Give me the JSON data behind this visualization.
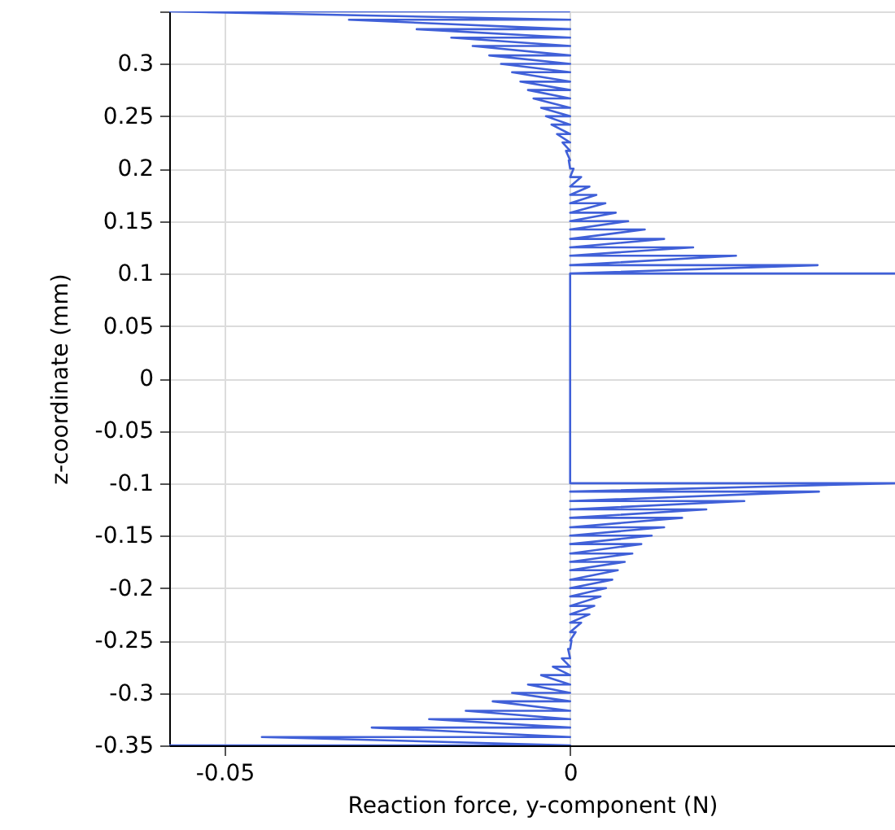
{
  "chart_data": {
    "type": "line",
    "xlabel": "Reaction force, y-component (N)",
    "ylabel": "z-coordinate (mm)",
    "xlim": [
      -0.058,
      0.047
    ],
    "xticks": [
      -0.05,
      0
    ],
    "ylim": [
      -0.35,
      0.35
    ],
    "yticks": [
      -0.35,
      -0.3,
      -0.25,
      -0.2,
      -0.15,
      -0.1,
      -0.05,
      0,
      0.05,
      0.1,
      0.15,
      0.2,
      0.25,
      0.3,
      {
        "value": 0.35,
        "label": null
      }
    ],
    "grid": true,
    "marker": "none",
    "line_style": "solid",
    "series": [
      {
        "color": "#4060d8",
        "x": [
          0,
          -0.058,
          0,
          -0.032,
          0,
          -0.0222,
          0,
          -0.0172,
          0,
          -0.0141,
          0,
          -0.0117,
          0,
          -0.01,
          0,
          -0.0084,
          0,
          -0.0072,
          0,
          -0.0061,
          0,
          -0.0053,
          0,
          -0.0042,
          0,
          -0.0035,
          0,
          -0.0027,
          0,
          -0.0019,
          0,
          -0.0011,
          0,
          -0.0006,
          0,
          -0.0002,
          0,
          0.0005,
          0,
          0.0016,
          0,
          0.0028,
          0,
          0.0038,
          0,
          0.0051,
          0,
          0.0066,
          0,
          0.0084,
          0,
          0.0108,
          0,
          0.0136,
          0,
          0.0178,
          0,
          0.024,
          0,
          0.0358,
          0,
          0.047,
          0,
          0,
          0.047,
          0,
          0.036,
          0,
          0.0252,
          0,
          0.0197,
          0,
          0.0162,
          0,
          0.0136,
          0,
          0.0118,
          0,
          0.0103,
          0,
          0.009,
          0,
          0.0079,
          0,
          0.0069,
          0,
          0.0061,
          0,
          0.0052,
          0,
          0.0044,
          0,
          0.0035,
          0,
          0.0028,
          0,
          0.0016,
          0,
          0.0008,
          0,
          0.0002,
          0,
          -0.0003,
          0,
          -0.0012,
          0,
          -0.0025,
          0,
          -0.0042,
          0,
          -0.0061,
          0,
          -0.0084,
          0,
          -0.0112,
          0,
          -0.0151,
          0,
          -0.0204,
          0,
          -0.0287,
          0,
          -0.0446,
          0,
          -0.058
        ],
        "values": [
          0.35,
          0.35,
          0.342,
          0.342,
          0.333,
          0.333,
          0.325,
          0.325,
          0.317,
          0.317,
          0.308,
          0.308,
          0.3,
          0.3,
          0.292,
          0.292,
          0.283,
          0.283,
          0.275,
          0.275,
          0.267,
          0.267,
          0.258,
          0.258,
          0.25,
          0.25,
          0.242,
          0.242,
          0.233,
          0.233,
          0.225,
          0.225,
          0.217,
          0.217,
          0.208,
          0.208,
          0.2,
          0.2,
          0.192,
          0.192,
          0.183,
          0.183,
          0.175,
          0.175,
          0.167,
          0.167,
          0.158,
          0.158,
          0.15,
          0.15,
          0.142,
          0.142,
          0.133,
          0.133,
          0.125,
          0.125,
          0.117,
          0.117,
          0.108,
          0.108,
          0.1,
          0.1,
          0.1,
          -0.1,
          -0.1,
          -0.108,
          -0.108,
          -0.117,
          -0.117,
          -0.125,
          -0.125,
          -0.133,
          -0.133,
          -0.142,
          -0.142,
          -0.15,
          -0.15,
          -0.158,
          -0.158,
          -0.167,
          -0.167,
          -0.175,
          -0.175,
          -0.183,
          -0.183,
          -0.192,
          -0.192,
          -0.2,
          -0.2,
          -0.208,
          -0.208,
          -0.217,
          -0.217,
          -0.225,
          -0.225,
          -0.233,
          -0.233,
          -0.242,
          -0.242,
          -0.25,
          -0.25,
          -0.258,
          -0.258,
          -0.267,
          -0.267,
          -0.275,
          -0.275,
          -0.283,
          -0.283,
          -0.292,
          -0.292,
          -0.3,
          -0.3,
          -0.308,
          -0.308,
          -0.317,
          -0.317,
          -0.325,
          -0.325,
          -0.333,
          -0.333,
          -0.342,
          -0.342,
          -0.35,
          -0.35
        ]
      }
    ]
  }
}
